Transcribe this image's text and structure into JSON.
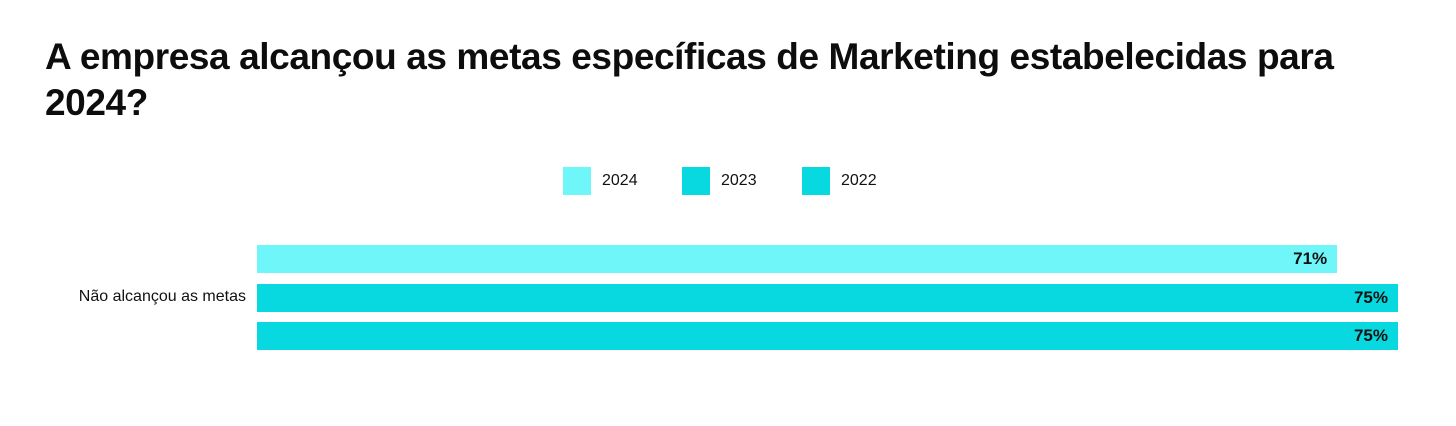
{
  "title": "A empresa alcançou as metas específicas de Marketing estabelecidas para 2024?",
  "chart_data": {
    "type": "bar",
    "orientation": "horizontal",
    "title": "A empresa alcançou as metas específicas de Marketing estabelecidas para 2024?",
    "categories": [
      "Não alcançou as metas"
    ],
    "series": [
      {
        "name": "2024",
        "values": [
          71
        ],
        "color": "#6ff6f9"
      },
      {
        "name": "2023",
        "values": [
          75
        ],
        "color": "#08d9e0"
      },
      {
        "name": "2022",
        "values": [
          75
        ],
        "color": "#08d9e0"
      }
    ],
    "value_labels": [
      "71%",
      "75%",
      "75%"
    ],
    "value_suffix": "%",
    "xlim": [
      0,
      75
    ],
    "grid": false,
    "legend_position": "top-center"
  }
}
